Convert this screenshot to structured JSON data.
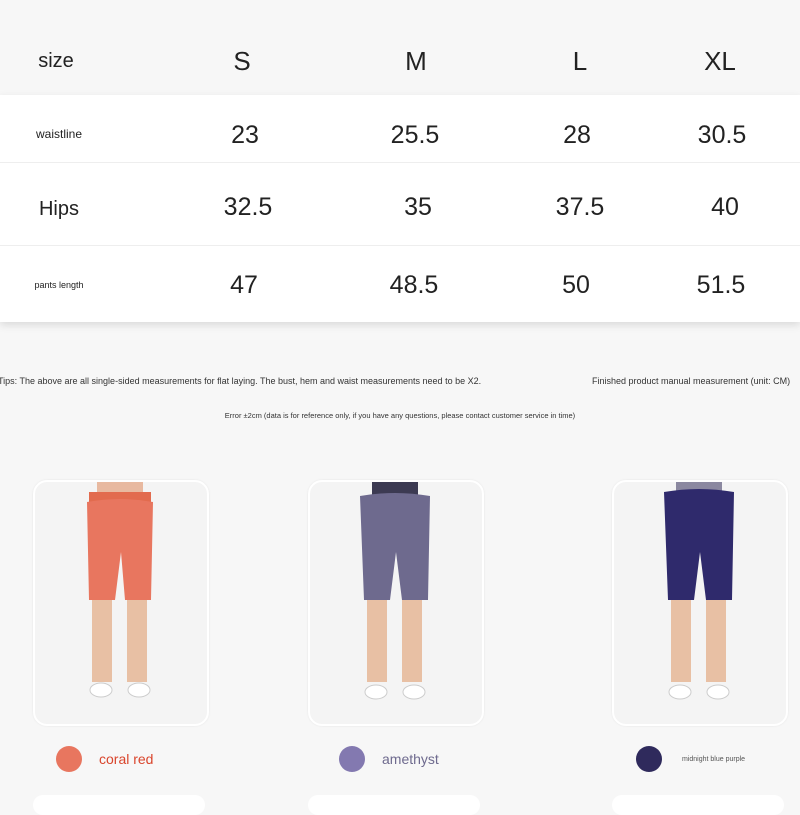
{
  "size_table": {
    "header": [
      "size",
      "S",
      "M",
      "L",
      "XL"
    ],
    "rows": [
      {
        "label": "waistline",
        "values": [
          "23",
          "25.5",
          "28",
          "30.5"
        ]
      },
      {
        "label": "Hips",
        "values": [
          "32.5",
          "35",
          "37.5",
          "40"
        ]
      },
      {
        "label": "pants length",
        "values": [
          "47",
          "48.5",
          "50",
          "51.5"
        ]
      }
    ]
  },
  "notes": {
    "tips": "Tips: The above are all single-sided measurements for flat laying. The bust, hem and waist measurements need to be X2.",
    "unit": "Finished product manual measurement (unit: CM)",
    "error": "Error ±2cm (data is for reference only, if you have any questions, please contact customer service in time)"
  },
  "colors": [
    {
      "name": "coral red",
      "hex": "#e8765f",
      "text_color": "#d9452c"
    },
    {
      "name": "amethyst",
      "hex": "#8379b0",
      "text_color": "#6e6a8e"
    },
    {
      "name": "midnight blue purple",
      "hex": "#2f2a5c",
      "text_color": "#555"
    }
  ]
}
